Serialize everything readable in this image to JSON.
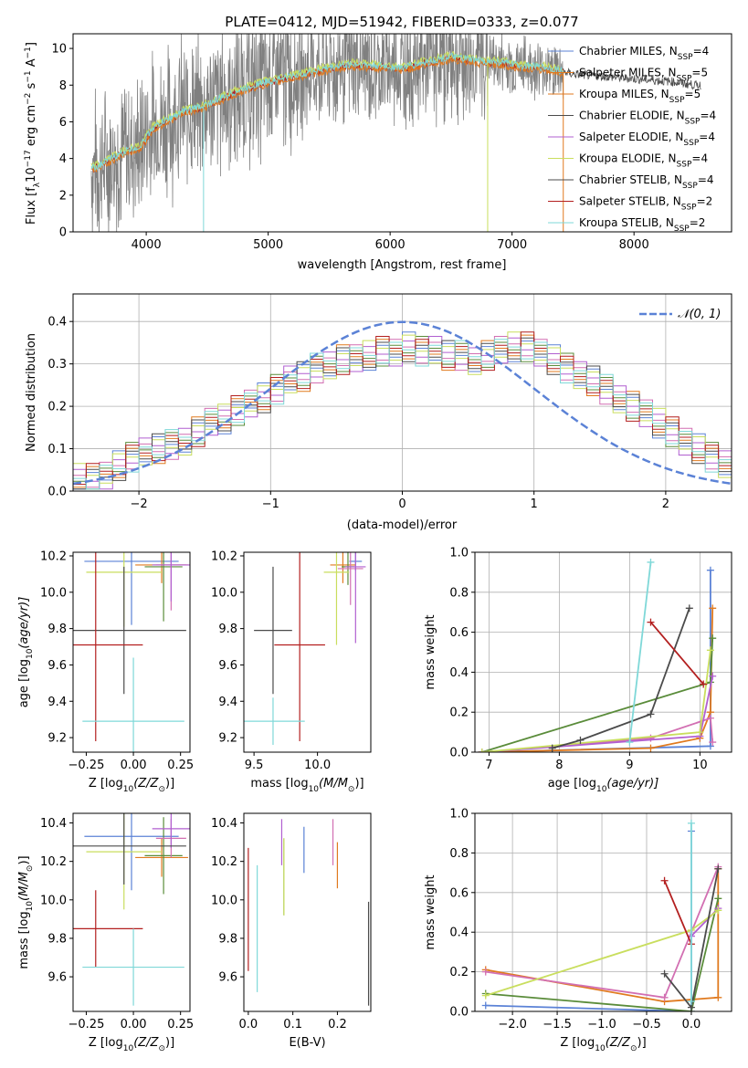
{
  "colors": [
    "#5b82d6",
    "#e07a1f",
    "#5a8c3a",
    "#d26fb2",
    "#b15fd0",
    "#c9de5e",
    "#4b4b4b",
    "#b31f1f",
    "#7fd8d8"
  ],
  "chart_data": [
    {
      "id": "spectrum",
      "type": "line",
      "title": "PLATE=0412, MJD=51942, FIBERID=0333, z=0.077",
      "xlabel": "wavelength [Angstrom, rest frame]",
      "ylabel_parts": [
        "Flux [f",
        "λ",
        "10",
        "−17",
        " erg cm",
        "−2",
        " s",
        "−1",
        " A",
        "−1",
        "]"
      ],
      "xlim": [
        3400,
        8800
      ],
      "ylim": [
        0,
        10.8
      ],
      "xticks": [
        "4000",
        "5000",
        "6000",
        "7000",
        "8000"
      ],
      "xtick_values": [
        4000,
        5000,
        6000,
        7000,
        8000
      ],
      "yticks": [
        "0",
        "2",
        "4",
        "6",
        "8",
        "10"
      ],
      "ytick_values": [
        0,
        2,
        4,
        6,
        8,
        10
      ],
      "continuum": {
        "x": [
          3550,
          3650,
          3750,
          3850,
          3950,
          4050,
          4150,
          4300,
          4500,
          4700,
          4900,
          5100,
          5300,
          5500,
          5700,
          5900,
          6100,
          6300,
          6500,
          6700,
          6900,
          7100,
          7300,
          7500,
          7700,
          7900,
          8100,
          8300,
          8500
        ],
        "y": [
          3.4,
          3.7,
          4.1,
          4.4,
          4.6,
          5.6,
          6.0,
          6.5,
          6.9,
          7.5,
          8.0,
          8.3,
          8.6,
          8.9,
          9.1,
          9.0,
          8.9,
          9.2,
          9.5,
          9.3,
          9.2,
          9.0,
          8.9,
          8.6,
          8.5,
          8.4,
          8.3,
          8.2,
          8.0
        ]
      },
      "legend_text": [
        [
          "Chabrier MILES, N",
          "SSP",
          "=4"
        ],
        [
          "Salpeter MILES, N",
          "SSP",
          "=5"
        ],
        [
          "Kroupa MILES, N",
          "SSP",
          "=5"
        ],
        [
          "Chabrier ELODIE, N",
          "SSP",
          "=4"
        ],
        [
          "Salpeter ELODIE, N",
          "SSP",
          "=4"
        ],
        [
          "Kroupa ELODIE, N",
          "SSP",
          "=4"
        ],
        [
          "Chabrier STELIB, N",
          "SSP",
          "=4"
        ],
        [
          "Salpeter STELIB, N",
          "SSP",
          "=2"
        ],
        [
          "Kroupa STELIB, N",
          "SSP",
          "=2"
        ]
      ],
      "legend_colors": [
        "#5b82d6",
        "#e07a1f",
        "#e07a1f",
        "#4b4b4b",
        "#b15fd0",
        "#c9de5e",
        "#4b4b4b",
        "#b31f1f",
        "#7fd8d8"
      ]
    },
    {
      "id": "residuals",
      "type": "histogram",
      "xlabel": "(data-model)/error",
      "ylabel": "Normed distribution",
      "xlim": [
        -2.5,
        2.5
      ],
      "ylim": [
        0,
        0.465
      ],
      "xticks": [
        "−2",
        "−1",
        "0",
        "1",
        "2"
      ],
      "xtick_values": [
        -2,
        -1,
        0,
        1,
        2
      ],
      "yticks": [
        "0.0",
        "0.1",
        "0.2",
        "0.3",
        "0.4"
      ],
      "ytick_values": [
        0,
        0.1,
        0.2,
        0.3,
        0.4
      ],
      "bin_width": 0.1,
      "base": [
        0.03,
        0.03,
        0.04,
        0.06,
        0.08,
        0.09,
        0.1,
        0.11,
        0.12,
        0.14,
        0.16,
        0.17,
        0.19,
        0.21,
        0.22,
        0.24,
        0.26,
        0.27,
        0.29,
        0.3,
        0.31,
        0.31,
        0.32,
        0.33,
        0.33,
        0.34,
        0.33,
        0.33,
        0.32,
        0.32,
        0.31,
        0.32,
        0.33,
        0.34,
        0.34,
        0.33,
        0.31,
        0.29,
        0.27,
        0.26,
        0.24,
        0.22,
        0.2,
        0.18,
        0.16,
        0.14,
        0.12,
        0.1,
        0.08,
        0.06
      ],
      "legend": [
        "𝒩(0, 1)"
      ]
    },
    {
      "id": "age-vs-Z",
      "type": "errorbar",
      "xlabel_parts": [
        "Z [log",
        "10",
        "(Z/Z",
        "⊙",
        ")]"
      ],
      "ylabel_parts": [
        "age  [log",
        "10",
        "(age/yr)]"
      ],
      "xlim": [
        -0.32,
        0.3
      ],
      "ylim": [
        9.12,
        10.22
      ],
      "xticks": [
        "−0.25",
        "0.00",
        "0.25"
      ],
      "xtick_values": [
        -0.25,
        0,
        0.25
      ],
      "yticks": [
        "9.2",
        "9.4",
        "9.6",
        "9.8",
        "10.0",
        "10.2"
      ],
      "ytick_values": [
        9.2,
        9.4,
        9.6,
        9.8,
        10.0,
        10.2
      ],
      "points": [
        {
          "c": 0,
          "x": -0.01,
          "xerr": 0.25,
          "y": 10.17,
          "yerr": 0.35
        },
        {
          "c": 1,
          "x": 0.15,
          "xerr": 0.14,
          "y": 10.15,
          "yerr": 0.1
        },
        {
          "c": 2,
          "x": 0.16,
          "xerr": 0.1,
          "y": 10.14,
          "yerr": 0.3
        },
        {
          "c": 3,
          "x": 0.2,
          "xerr": 0.08,
          "y": 10.15,
          "yerr": 0.25
        },
        {
          "c": 4,
          "x": 0.2,
          "xerr": 0.1,
          "y": 10.15,
          "yerr": 0.2
        },
        {
          "c": 5,
          "x": -0.05,
          "xerr": 0.2,
          "y": 10.11,
          "yerr": 0.3
        },
        {
          "c": 6,
          "x": -0.05,
          "xerr": 0.33,
          "y": 9.79,
          "yerr": 0.35
        },
        {
          "c": 7,
          "x": -0.2,
          "xerr": 0.25,
          "y": 9.71,
          "yerr": 0.53
        },
        {
          "c": 8,
          "x": 0.0,
          "xerr": 0.27,
          "y": 9.29,
          "yerr": 0.35
        }
      ]
    },
    {
      "id": "age-vs-mass",
      "type": "errorbar",
      "xlabel_parts": [
        "mass [log",
        "10",
        "(M/M",
        "⊙",
        ")]"
      ],
      "xlim": [
        9.42,
        10.42
      ],
      "ylim": [
        9.12,
        10.22
      ],
      "xticks": [
        "9.5",
        "10.0"
      ],
      "xtick_values": [
        9.5,
        10.0
      ],
      "yticks": [
        "9.2",
        "9.4",
        "9.6",
        "9.8",
        "10.0",
        "10.2"
      ],
      "ytick_values": [
        9.2,
        9.4,
        9.6,
        9.8,
        10.0,
        10.2
      ],
      "points": [
        {
          "c": 0,
          "x": 10.3,
          "xerr": 0.05,
          "y": 10.17,
          "yerr": 0.05
        },
        {
          "c": 1,
          "x": 10.2,
          "xerr": 0.1,
          "y": 10.15,
          "yerr": 0.1
        },
        {
          "c": 2,
          "x": 10.24,
          "xerr": 0.05,
          "y": 10.14,
          "yerr": 0.1
        },
        {
          "c": 3,
          "x": 10.26,
          "xerr": 0.1,
          "y": 10.13,
          "yerr": 0.2
        },
        {
          "c": 4,
          "x": 10.3,
          "xerr": 0.08,
          "y": 10.14,
          "yerr": 0.42
        },
        {
          "c": 5,
          "x": 10.15,
          "xerr": 0.1,
          "y": 10.11,
          "yerr": 0.4
        },
        {
          "c": 6,
          "x": 9.65,
          "xerr": 0.15,
          "y": 9.79,
          "yerr": 0.35
        },
        {
          "c": 7,
          "x": 9.86,
          "xerr": 0.2,
          "y": 9.71,
          "yerr": 0.53
        },
        {
          "c": 8,
          "x": 9.65,
          "xerr": 0.25,
          "y": 9.29,
          "yerr": 0.13
        }
      ]
    },
    {
      "id": "massweight-vs-age",
      "type": "line",
      "xlabel_parts": [
        "age  [log",
        "10",
        "(age/yr)]"
      ],
      "ylabel": "mass weight",
      "xlim": [
        6.8,
        10.45
      ],
      "ylim": [
        0,
        1.0
      ],
      "xticks": [
        "7",
        "8",
        "9",
        "10"
      ],
      "xtick_values": [
        7,
        8,
        9,
        10
      ],
      "yticks": [
        "0.0",
        "0.2",
        "0.4",
        "0.6",
        "0.8",
        "1.0"
      ],
      "ytick_values": [
        0,
        0.2,
        0.4,
        0.6,
        0.8,
        1.0
      ],
      "series": [
        {
          "c": 0,
          "x": [
            6.9,
            10.15,
            10.15
          ],
          "y": [
            0.0,
            0.03,
            0.91
          ]
        },
        {
          "c": 1,
          "x": [
            6.9,
            9.3,
            10.0,
            10.15,
            10.18
          ],
          "y": [
            0.0,
            0.02,
            0.07,
            0.2,
            0.72
          ]
        },
        {
          "c": 2,
          "x": [
            6.9,
            10.15,
            10.18
          ],
          "y": [
            0.0,
            0.35,
            0.57
          ]
        },
        {
          "c": 3,
          "x": [
            6.9,
            9.3,
            10.15,
            10.18
          ],
          "y": [
            0.0,
            0.07,
            0.17,
            0.05
          ]
        },
        {
          "c": 4,
          "x": [
            6.9,
            10.0,
            10.18
          ],
          "y": [
            0.0,
            0.08,
            0.38
          ]
        },
        {
          "c": 5,
          "x": [
            6.9,
            10.0,
            10.15
          ],
          "y": [
            0.0,
            0.1,
            0.51
          ]
        },
        {
          "c": 6,
          "x": [
            7.9,
            8.3,
            9.3,
            9.85
          ],
          "y": [
            0.02,
            0.06,
            0.19,
            0.72
          ]
        },
        {
          "c": 7,
          "x": [
            9.3,
            10.05
          ],
          "y": [
            0.65,
            0.34
          ]
        },
        {
          "c": 8,
          "x": [
            9.0,
            9.3
          ],
          "y": [
            0.05,
            0.95
          ]
        }
      ]
    },
    {
      "id": "mass-vs-Z",
      "type": "errorbar",
      "xlabel_parts": [
        "Z [log",
        "10",
        "(Z/Z",
        "⊙",
        ")]"
      ],
      "ylabel_parts": [
        "mass [log",
        "10",
        "(M/M",
        "⊙",
        ")]"
      ],
      "xlim": [
        -0.32,
        0.3
      ],
      "ylim": [
        9.42,
        10.45
      ],
      "xticks": [
        "−0.25",
        "0.00",
        "0.25"
      ],
      "xtick_values": [
        -0.25,
        0,
        0.25
      ],
      "yticks": [
        "9.6",
        "9.8",
        "10.0",
        "10.2",
        "10.4"
      ],
      "ytick_values": [
        9.6,
        9.8,
        10.0,
        10.2,
        10.4
      ],
      "points": [
        {
          "c": 0,
          "x": -0.01,
          "xerr": 0.25,
          "y": 10.33,
          "yerr": 0.28
        },
        {
          "c": 1,
          "x": 0.15,
          "xerr": 0.14,
          "y": 10.22,
          "yerr": 0.1
        },
        {
          "c": 2,
          "x": 0.16,
          "xerr": 0.1,
          "y": 10.23,
          "yerr": 0.2
        },
        {
          "c": 3,
          "x": 0.2,
          "xerr": 0.08,
          "y": 10.32,
          "yerr": 0.1
        },
        {
          "c": 4,
          "x": 0.2,
          "xerr": 0.1,
          "y": 10.37,
          "yerr": 0.1
        },
        {
          "c": 5,
          "x": -0.05,
          "xerr": 0.2,
          "y": 10.25,
          "yerr": 0.3
        },
        {
          "c": 6,
          "x": -0.05,
          "xerr": 0.33,
          "y": 10.28,
          "yerr": 0.2
        },
        {
          "c": 7,
          "x": -0.2,
          "xerr": 0.25,
          "y": 9.85,
          "yerr": 0.2
        },
        {
          "c": 8,
          "x": 0.0,
          "xerr": 0.27,
          "y": 9.65,
          "yerr": 0.2
        }
      ]
    },
    {
      "id": "mass-vs-ebv",
      "type": "errorbar",
      "xlabel": "E(B-V)",
      "xlim": [
        -0.01,
        0.275
      ],
      "ylim": [
        9.42,
        10.45
      ],
      "xticks": [
        "0.0",
        "0.1",
        "0.2"
      ],
      "xtick_values": [
        0,
        0.1,
        0.2
      ],
      "yticks": [
        "9.6",
        "9.8",
        "10.0",
        "10.2",
        "10.4"
      ],
      "ytick_values": [
        9.6,
        9.8,
        10.0,
        10.2,
        10.4
      ],
      "points": [
        {
          "c": 0,
          "x": 0.125,
          "y": 10.26,
          "yerr": 0.12
        },
        {
          "c": 1,
          "x": 0.2,
          "y": 10.18,
          "yerr": 0.12
        },
        {
          "c": 2,
          "x": 0.08,
          "y": 10.12,
          "yerr": 0.2
        },
        {
          "c": 3,
          "x": 0.19,
          "y": 10.3,
          "yerr": 0.12
        },
        {
          "c": 4,
          "x": 0.075,
          "y": 10.3,
          "yerr": 0.12
        },
        {
          "c": 5,
          "x": 0.08,
          "y": 10.12,
          "yerr": 0.2
        },
        {
          "c": 6,
          "x": 0.27,
          "y": 9.72,
          "yerr": 0.27
        },
        {
          "c": 7,
          "x": 0.0,
          "y": 9.95,
          "yerr": 0.32
        },
        {
          "c": 8,
          "x": 0.02,
          "y": 9.85,
          "yerr": 0.33
        }
      ]
    },
    {
      "id": "massweight-vs-Z",
      "type": "line",
      "xlabel_parts": [
        "Z [log",
        "10",
        "(Z/Z",
        "⊙",
        ")]"
      ],
      "ylabel": "mass weight",
      "xlim": [
        -2.42,
        0.45
      ],
      "ylim": [
        0,
        1.0
      ],
      "xticks": [
        "−2.0",
        "−1.5",
        "−1.0",
        "−0.5",
        "0.0"
      ],
      "xtick_values": [
        -2,
        -1.5,
        -1,
        -0.5,
        0
      ],
      "yticks": [
        "0.0",
        "0.2",
        "0.4",
        "0.6",
        "0.8",
        "1.0"
      ],
      "ytick_values": [
        0,
        0.2,
        0.4,
        0.6,
        0.8,
        1.0
      ],
      "series": [
        {
          "c": 0,
          "x": [
            -2.3,
            0.0,
            0.0
          ],
          "y": [
            0.03,
            0.0,
            0.91
          ]
        },
        {
          "c": 1,
          "x": [
            -2.3,
            -0.3,
            0.3,
            0.3
          ],
          "y": [
            0.21,
            0.05,
            0.07,
            0.72
          ]
        },
        {
          "c": 2,
          "x": [
            -2.3,
            0.0,
            0.3
          ],
          "y": [
            0.09,
            0.0,
            0.57
          ]
        },
        {
          "c": 3,
          "x": [
            -2.3,
            -0.3,
            0.3
          ],
          "y": [
            0.2,
            0.07,
            0.73
          ]
        },
        {
          "c": 4,
          "x": [
            0.0,
            0.3
          ],
          "y": [
            0.38,
            0.52
          ]
        },
        {
          "c": 5,
          "x": [
            -2.3,
            0.0,
            0.3
          ],
          "y": [
            0.08,
            0.41,
            0.51
          ]
        },
        {
          "c": 6,
          "x": [
            -0.3,
            0.0,
            0.3
          ],
          "y": [
            0.19,
            0.02,
            0.72
          ]
        },
        {
          "c": 7,
          "x": [
            -0.3,
            0.0
          ],
          "y": [
            0.66,
            0.34
          ]
        },
        {
          "c": 8,
          "x": [
            0.0,
            0.0
          ],
          "y": [
            0.05,
            0.95
          ]
        }
      ]
    }
  ]
}
